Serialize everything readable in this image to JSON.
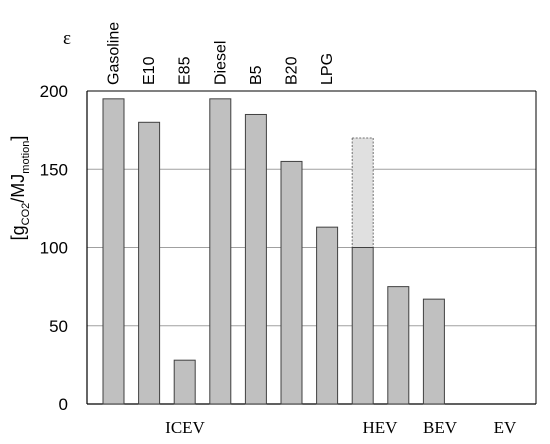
{
  "chart_data": {
    "type": "bar",
    "title": "",
    "y_symbol": "ε",
    "ylabel_parts": {
      "open": "[g",
      "sub1": "CO2",
      "mid": "/MJ",
      "sub2": "motion",
      "close": "]"
    },
    "ylim": [
      0,
      200
    ],
    "yticks": [
      "0",
      "50",
      "100",
      "150",
      "200"
    ],
    "ytick_values": [
      0,
      50,
      100,
      150,
      200
    ],
    "grid": true,
    "bars": [
      {
        "label": "Gasoline",
        "value": 195
      },
      {
        "label": "E10",
        "value": 180
      },
      {
        "label": "E85",
        "value": 28
      },
      {
        "label": "Diesel",
        "value": 195
      },
      {
        "label": "B5",
        "value": 185
      },
      {
        "label": "B20",
        "value": 155
      },
      {
        "label": "LPG",
        "value": 113
      },
      {
        "label": "",
        "value": 100,
        "extension_to": 170
      },
      {
        "label": "",
        "value": 75
      },
      {
        "label": "",
        "value": 67
      }
    ],
    "group_labels": [
      "ICEV",
      "HEV",
      "BEV",
      "EV"
    ],
    "colors": {
      "bar_fill": "#c0c0c0",
      "bar_stroke": "#404040",
      "extension_fill": "#e0e0e0",
      "extension_stroke": "#707070",
      "grid": "#a0a0a0",
      "axis": "#000000"
    }
  }
}
